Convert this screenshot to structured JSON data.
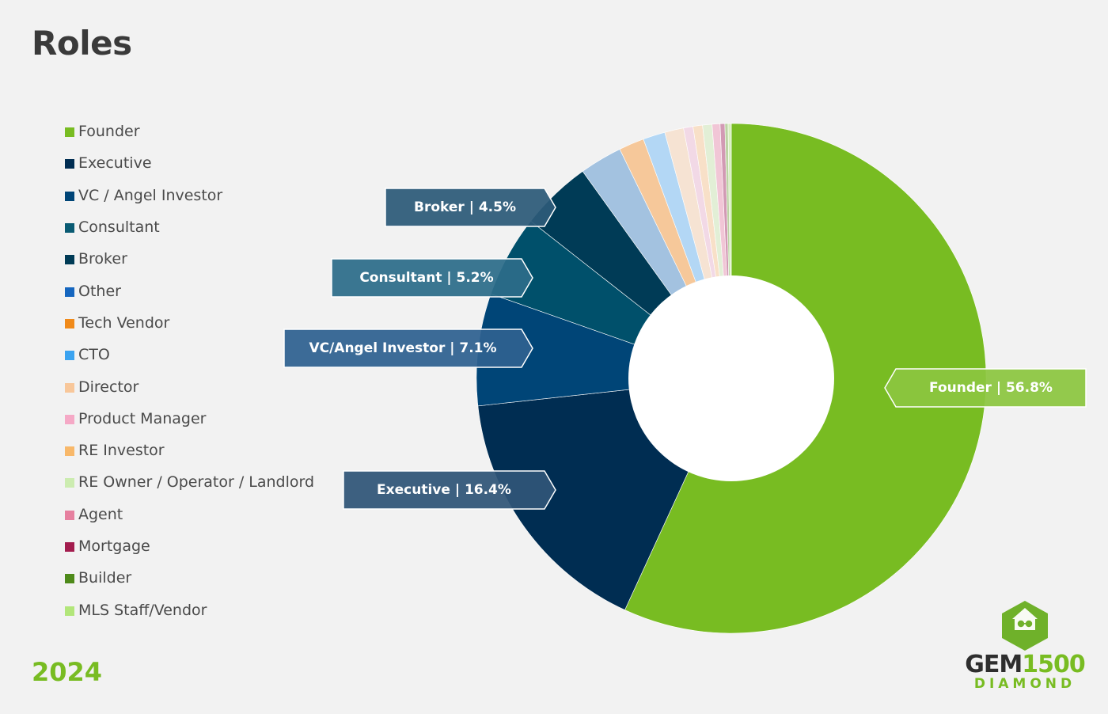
{
  "page": {
    "title": "Roles",
    "year": "2024",
    "brand": {
      "part1": "GEM",
      "part2": "1500",
      "subtitle": "DIAMOND"
    }
  },
  "colors": {
    "background": "#f2f2f2",
    "accent": "#78bc22",
    "founder": "#78bc22",
    "executive": "#002d52",
    "vc": "#004577",
    "consultant": "#00506b",
    "broker": "#003b56"
  },
  "chart_data": {
    "type": "pie",
    "title": "Roles",
    "donut": true,
    "legend_position": "left",
    "legend": [
      {
        "label": "Founder",
        "color": "#78bc22"
      },
      {
        "label": "Executive",
        "color": "#002d52"
      },
      {
        "label": "VC / Angel Investor",
        "color": "#004577"
      },
      {
        "label": "Consultant",
        "color": "#0a5b73"
      },
      {
        "label": "Broker",
        "color": "#003b56"
      },
      {
        "label": "Other",
        "color": "#1566bf"
      },
      {
        "label": "Tech Vendor",
        "color": "#f08a1a"
      },
      {
        "label": "CTO",
        "color": "#3ba3f0"
      },
      {
        "label": "Director",
        "color": "#f8c79a"
      },
      {
        "label": "Product Manager",
        "color": "#f5a9c6"
      },
      {
        "label": "RE Investor",
        "color": "#f8b86a"
      },
      {
        "label": "RE Owner / Operator /  Landlord",
        "color": "#ccecb0"
      },
      {
        "label": "Agent",
        "color": "#e6809f"
      },
      {
        "label": "Mortgage",
        "color": "#a31d4e"
      },
      {
        "label": "Builder",
        "color": "#4e8a1a"
      },
      {
        "label": "MLS Staff/Vendor",
        "color": "#b2e67a"
      }
    ],
    "slices": [
      {
        "label": "Founder",
        "value": 56.8,
        "color": "#78bc22"
      },
      {
        "label": "Executive",
        "value": 16.4,
        "color": "#002d52"
      },
      {
        "label": "VC / Angel Investor",
        "value": 7.1,
        "color": "#004577"
      },
      {
        "label": "Consultant",
        "value": 5.2,
        "color": "#00506b"
      },
      {
        "label": "Broker",
        "value": 4.5,
        "color": "#003b56"
      },
      {
        "label": "Other",
        "value": 2.7,
        "color": "#a3c2e0"
      },
      {
        "label": "Tech Vendor",
        "value": 1.6,
        "color": "#f6c89a"
      },
      {
        "label": "CTO",
        "value": 1.4,
        "color": "#b3d7f5"
      },
      {
        "label": "Director",
        "value": 1.2,
        "color": "#f6e3d3"
      },
      {
        "label": "Product Manager",
        "value": 0.6,
        "color": "#f2d9e6"
      },
      {
        "label": "RE Investor",
        "value": 0.6,
        "color": "#f8e0c8"
      },
      {
        "label": "RE Owner / Operator /  Landlord",
        "value": 0.6,
        "color": "#e2efd6"
      },
      {
        "label": "Agent",
        "value": 0.5,
        "color": "#f1c6d6"
      },
      {
        "label": "Mortgage",
        "value": 0.3,
        "color": "#d29ab4"
      },
      {
        "label": "Builder",
        "value": 0.2,
        "color": "#bcd3a4"
      },
      {
        "label": "MLS Staff/Vendor",
        "value": 0.2,
        "color": "#d7efbe"
      }
    ],
    "callouts": [
      {
        "text": "Founder | 56.8%",
        "slice": "Founder",
        "color": "#8cc63f"
      },
      {
        "text": "Executive  | 16.4%",
        "slice": "Executive",
        "color": "#2f5577"
      },
      {
        "text": "VC/Angel Investor  | 7.1%",
        "slice": "VC / Angel Investor",
        "color": "#2e6190"
      },
      {
        "text": "Consultant  | 5.2%",
        "slice": "Consultant",
        "color": "#2c6d8a"
      },
      {
        "text": "Broker  | 4.5%",
        "slice": "Broker",
        "color": "#2c5a78"
      }
    ]
  }
}
